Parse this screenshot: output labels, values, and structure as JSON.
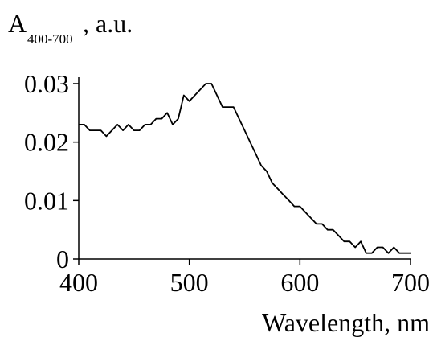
{
  "chart_data": {
    "type": "line",
    "title": "",
    "xlabel": "Wavelength, nm",
    "ylabel": {
      "main": "A",
      "subscript": "400-700",
      "suffix": ", a.u."
    },
    "xlim": [
      400,
      700
    ],
    "ylim": [
      0,
      0.03
    ],
    "xticks": [
      400,
      500,
      600,
      700
    ],
    "xtick_labels": [
      "400",
      "500",
      "600",
      "700"
    ],
    "yticks": [
      0,
      0.01,
      0.02,
      0.03
    ],
    "ytick_labels": [
      "0",
      "0.01",
      "0.02",
      "0.03"
    ],
    "grid": false,
    "line_color": "#000000",
    "series": [
      {
        "x": [
          400,
          405,
          410,
          415,
          420,
          425,
          430,
          435,
          440,
          445,
          450,
          455,
          460,
          465,
          470,
          475,
          480,
          485,
          490,
          495,
          500,
          505,
          510,
          515,
          520,
          525,
          530,
          535,
          540,
          545,
          550,
          555,
          560,
          565,
          570,
          575,
          580,
          585,
          590,
          595,
          600,
          605,
          610,
          615,
          620,
          625,
          630,
          635,
          640,
          645,
          650,
          655,
          660,
          665,
          670,
          675,
          680,
          685,
          690,
          695,
          700
        ],
        "values": [
          0.023,
          0.023,
          0.022,
          0.022,
          0.022,
          0.021,
          0.022,
          0.023,
          0.022,
          0.023,
          0.022,
          0.022,
          0.023,
          0.023,
          0.024,
          0.024,
          0.025,
          0.023,
          0.024,
          0.028,
          0.027,
          0.028,
          0.029,
          0.03,
          0.03,
          0.028,
          0.026,
          0.026,
          0.026,
          0.024,
          0.022,
          0.02,
          0.018,
          0.016,
          0.015,
          0.013,
          0.012,
          0.011,
          0.01,
          0.009,
          0.009,
          0.008,
          0.007,
          0.006,
          0.006,
          0.005,
          0.005,
          0.004,
          0.003,
          0.003,
          0.002,
          0.003,
          0.001,
          0.001,
          0.002,
          0.002,
          0.001,
          0.002,
          0.001,
          0.001,
          0.001
        ]
      }
    ]
  }
}
